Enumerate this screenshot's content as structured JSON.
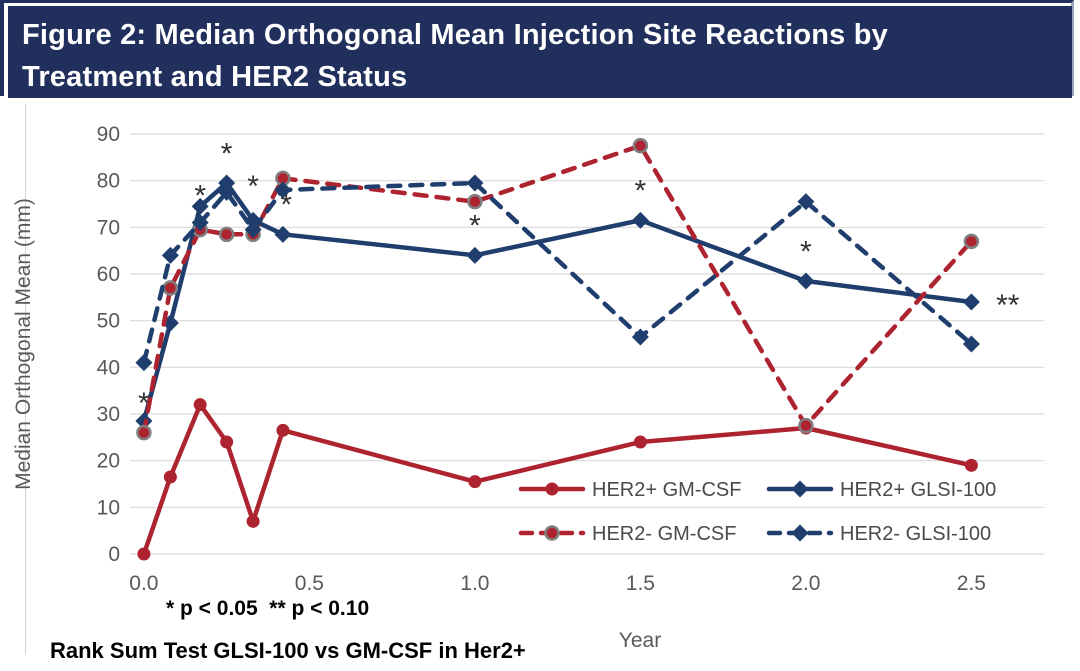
{
  "header": {
    "title_line1": "Figure 2: Median Orthogonal Mean Injection Site Reactions by",
    "title_line2": "Treatment and HER2 Status"
  },
  "annotations": {
    "pvalue_note": "* p < 0.05  ** p < 0.10",
    "test_note": "Rank Sum Test GLSI-100 vs GM-CSF in Her2+"
  },
  "colors": {
    "title_bg": "#202F5B",
    "red": "#AE2330",
    "blue": "#1F3E6D",
    "grid": "#D9D9D9",
    "axis_text": "#595959",
    "legend_text": "#4A4A4A",
    "marker_ring": "#7F7F7F",
    "sig": "#333333"
  },
  "chart_data": {
    "type": "line",
    "title": "Median Orthogonal Mean Injection Site Reactions by Treatment and HER2 Status",
    "xlabel": "Year",
    "ylabel": "Median Orthogonal Mean (mm)",
    "x": [
      0,
      0.08,
      0.17,
      0.25,
      0.33,
      0.42,
      1.0,
      1.5,
      2.0,
      2.5
    ],
    "xlim": [
      -0.03,
      2.72
    ],
    "ylim": [
      0,
      90
    ],
    "yticks": [
      0,
      10,
      20,
      30,
      40,
      50,
      60,
      70,
      80,
      90
    ],
    "xtick_labels": [
      "0.0",
      "0.5",
      "1.0",
      "1.5",
      "2.0",
      "2.5"
    ],
    "grid": true,
    "legend_position": "inside-bottom-right",
    "series": [
      {
        "name": "HER2+ GM-CSF",
        "style": "solid",
        "marker": "circle",
        "color_key": "red",
        "values": [
          0,
          16.5,
          32,
          24,
          7,
          26.5,
          15.5,
          24,
          27,
          19
        ]
      },
      {
        "name": "HER2+ GLSI-100",
        "style": "solid",
        "marker": "diamond",
        "color_key": "blue",
        "values": [
          28.5,
          49.5,
          74.5,
          79.5,
          71.5,
          68.5,
          64,
          71.5,
          58.5,
          54
        ]
      },
      {
        "name": "HER2- GM-CSF",
        "style": "dashed",
        "marker": "circle-ring",
        "color_key": "red",
        "values": [
          26,
          57,
          69.5,
          68.5,
          68.5,
          80.5,
          75.5,
          87.5,
          27.5,
          67
        ]
      },
      {
        "name": "HER2- GLSI-100",
        "style": "dashed",
        "marker": "diamond",
        "color_key": "blue",
        "values": [
          41,
          64,
          71,
          77.5,
          69.5,
          78,
          79.5,
          46.5,
          75.5,
          45
        ]
      }
    ],
    "significance_markers": [
      {
        "x": 0.0,
        "y": 33.0,
        "label": "*"
      },
      {
        "x": 0.17,
        "y": 77.5,
        "label": "*"
      },
      {
        "x": 0.25,
        "y": 86.5,
        "label": "*"
      },
      {
        "x": 0.33,
        "y": 79.5,
        "label": "*"
      },
      {
        "x": 0.43,
        "y": 75.5,
        "label": "*"
      },
      {
        "x": 1.0,
        "y": 71.0,
        "label": "*"
      },
      {
        "x": 1.5,
        "y": 78.5,
        "label": "*"
      },
      {
        "x": 2.0,
        "y": 65.5,
        "label": "*"
      },
      {
        "x": 2.61,
        "y": 54.0,
        "label": "**"
      }
    ]
  }
}
